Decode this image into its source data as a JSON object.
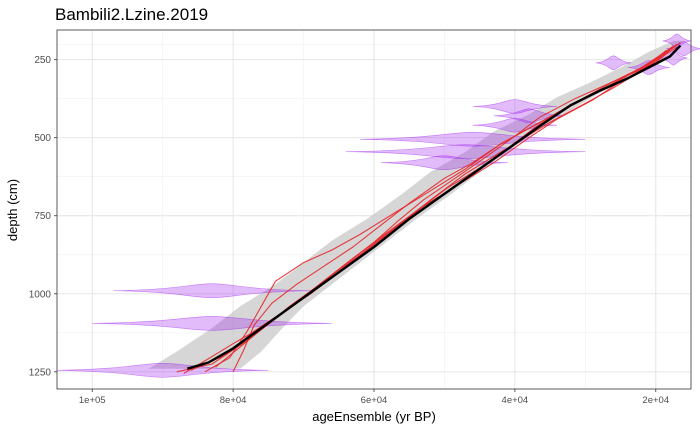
{
  "chart_data": {
    "type": "line",
    "title": "Bambili2.Lzine.2019",
    "xlabel": "ageEnsemble (yr BP)",
    "ylabel": "depth (cm)",
    "x_reversed": true,
    "y_reversed": true,
    "xlim": [
      105000,
      15000
    ],
    "ylim": [
      155,
      1305
    ],
    "x_ticks": [
      100000,
      80000,
      60000,
      40000,
      20000
    ],
    "x_tick_labels": [
      "1e+05",
      "8e+04",
      "6e+04",
      "4e+04",
      "2e+04"
    ],
    "y_ticks": [
      250,
      500,
      750,
      1000,
      1250
    ],
    "y_tick_labels": [
      "250",
      "500",
      "750",
      "1000",
      "1250"
    ],
    "grid": true,
    "colors": {
      "median": "#000000",
      "ensemble": "#e8262a",
      "band": "#c8c8c8",
      "dates": "#a020f0"
    },
    "series": [
      {
        "role": "median",
        "x": [
          86500,
          83500,
          80000,
          76000,
          72000,
          68000,
          64000,
          60000,
          55000,
          50000,
          45000,
          40000,
          36000,
          32000,
          28000,
          24000,
          21000,
          18000,
          16500
        ],
        "y": [
          1240,
          1220,
          1175,
          1110,
          1045,
          980,
          915,
          850,
          760,
          680,
          600,
          520,
          455,
          395,
          350,
          310,
          275,
          240,
          205
        ]
      },
      {
        "role": "ensemble",
        "x": [
          88000,
          83000,
          78000,
          74000,
          70000,
          66000,
          61000,
          57000,
          53000,
          48000,
          43000,
          38000,
          34000,
          29000,
          25000,
          21000,
          17000
        ],
        "y": [
          1250,
          1225,
          1150,
          1080,
          1010,
          940,
          860,
          790,
          720,
          650,
          580,
          500,
          440,
          380,
          320,
          270,
          210
        ]
      },
      {
        "role": "ensemble",
        "x": [
          86000,
          81000,
          77000,
          73000,
          69000,
          65000,
          60000,
          56000,
          52000,
          47000,
          43000,
          39000,
          35000,
          30000,
          26000,
          22000,
          18500
        ],
        "y": [
          1245,
          1195,
          1120,
          1060,
          1000,
          930,
          840,
          770,
          700,
          615,
          560,
          505,
          450,
          390,
          340,
          285,
          220
        ]
      },
      {
        "role": "ensemble",
        "x": [
          84000,
          80500,
          78000,
          76000,
          74000,
          70000,
          66000,
          62000,
          57000,
          52000,
          47000,
          42000,
          38000,
          33000,
          28000,
          24000,
          20000,
          17000
        ],
        "y": [
          1250,
          1205,
          1120,
          1040,
          960,
          900,
          860,
          810,
          740,
          670,
          600,
          520,
          470,
          410,
          350,
          300,
          260,
          200
        ]
      },
      {
        "role": "ensemble",
        "x": [
          80000,
          78500,
          77000,
          74500,
          71000,
          67000,
          63000,
          59000,
          55000,
          50000,
          46000,
          42000,
          38000,
          34000,
          30000,
          26000,
          22000,
          18000
        ],
        "y": [
          1250,
          1180,
          1100,
          1030,
          970,
          910,
          850,
          780,
          710,
          630,
          580,
          520,
          470,
          420,
          370,
          320,
          275,
          215
        ]
      },
      {
        "role": "ensemble",
        "x": [
          82500,
          79000,
          75500,
          72000,
          68000,
          64000,
          60000,
          56500,
          53000,
          48500,
          44000,
          40000,
          36500,
          31500,
          27000,
          23000,
          19500,
          17500
        ],
        "y": [
          1235,
          1170,
          1105,
          1040,
          975,
          905,
          835,
          765,
          700,
          630,
          560,
          495,
          435,
          375,
          330,
          290,
          245,
          205
        ]
      },
      {
        "role": "ensemble",
        "x": [
          87000,
          84000,
          80000,
          75000,
          71000,
          67500,
          63500,
          58500,
          54000,
          49500,
          44500,
          40500,
          37000,
          32500,
          27500,
          23500,
          19000,
          16500
        ],
        "y": [
          1255,
          1215,
          1160,
          1095,
          1030,
          965,
          895,
          810,
          735,
          660,
          590,
          525,
          465,
          400,
          345,
          295,
          235,
          195
        ]
      }
    ],
    "band": {
      "upper_x": [
        79000,
        76000,
        73000,
        70000,
        66000,
        62000,
        58000,
        54000,
        49000,
        45000,
        41000,
        37000,
        33000,
        29000,
        25000,
        21000,
        18000,
        16000
      ],
      "lower_x": [
        92000,
        88000,
        83000,
        79000,
        74000,
        70000,
        66000,
        61000,
        56000,
        52000,
        47000,
        43000,
        38000,
        34000,
        29000,
        25000,
        21000,
        17500
      ],
      "y": [
        1240,
        1185,
        1110,
        1040,
        970,
        900,
        830,
        760,
        680,
        610,
        545,
        480,
        425,
        370,
        320,
        275,
        225,
        190
      ]
    },
    "dates": [
      {
        "x": 17000,
        "y": 190,
        "spread": 2000
      },
      {
        "x": 16000,
        "y": 215,
        "spread": 2500
      },
      {
        "x": 17500,
        "y": 245,
        "spread": 2000
      },
      {
        "x": 26000,
        "y": 260,
        "spread": 2500
      },
      {
        "x": 21000,
        "y": 275,
        "spread": 3000
      },
      {
        "x": 40000,
        "y": 400,
        "spread": 6000
      },
      {
        "x": 38000,
        "y": 430,
        "spread": 5000
      },
      {
        "x": 40000,
        "y": 460,
        "spread": 6000
      },
      {
        "x": 46000,
        "y": 505,
        "spread": 16000
      },
      {
        "x": 47000,
        "y": 545,
        "spread": 17000
      },
      {
        "x": 50000,
        "y": 580,
        "spread": 9000
      },
      {
        "x": 83000,
        "y": 990,
        "spread": 14000
      },
      {
        "x": 83000,
        "y": 1095,
        "spread": 17000
      },
      {
        "x": 90000,
        "y": 1245,
        "spread": 15000
      }
    ]
  }
}
